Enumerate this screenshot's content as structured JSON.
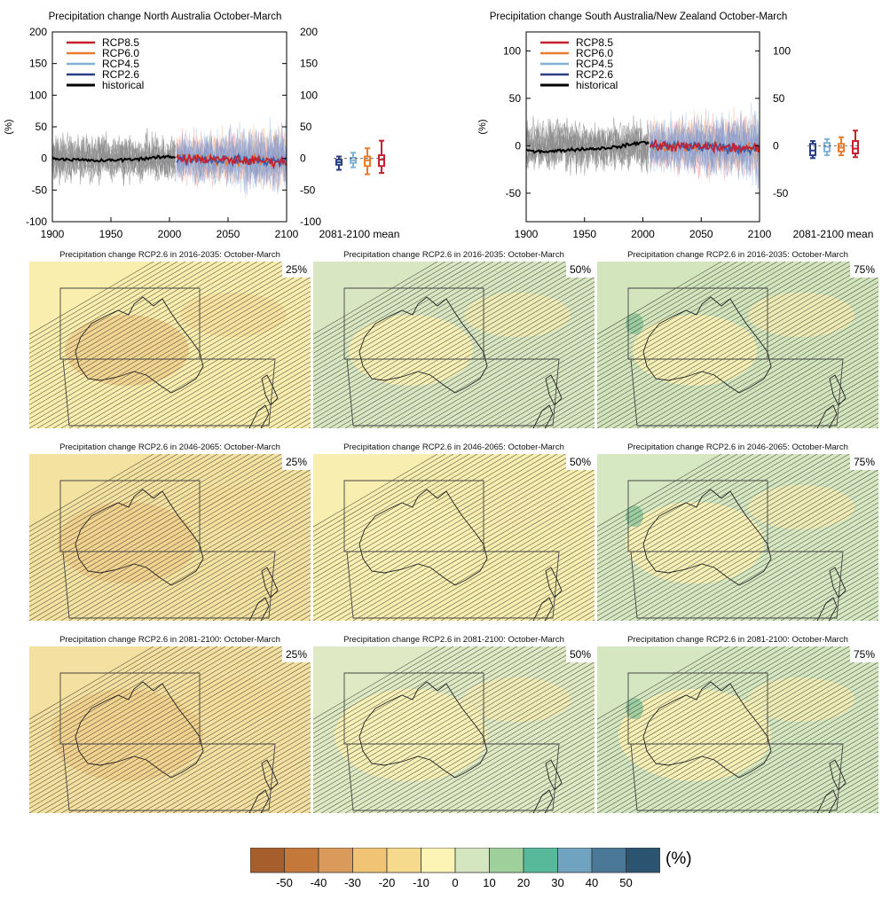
{
  "chart_data": [
    {
      "type": "line",
      "title": "Precipitation change North Australia October-March",
      "ylabel": "(%)",
      "xlim": [
        1900,
        2100
      ],
      "ylim": [
        -100,
        200
      ],
      "x_ticks": [
        "1900",
        "1950",
        "2000",
        "2050",
        "2100"
      ],
      "y_ticks": [
        "200",
        "150",
        "100",
        "50",
        "0",
        "-50",
        "-100"
      ],
      "legend": "top-left",
      "boxplot_label": "2081-2100 mean",
      "series": [
        {
          "name": "RCP8.5",
          "color": "#c8202c",
          "box": {
            "min": -23,
            "q1": -12,
            "median": -2,
            "q3": 5,
            "max": 28
          }
        },
        {
          "name": "RCP6.0",
          "color": "#e97b2a",
          "box": {
            "min": -25,
            "q1": -12,
            "median": -3,
            "q3": 3,
            "max": 16
          }
        },
        {
          "name": "RCP4.5",
          "color": "#7fb2d6",
          "box": {
            "min": -14,
            "q1": -7,
            "median": -3,
            "q3": 1,
            "max": 9
          }
        },
        {
          "name": "RCP2.6",
          "color": "#283e85",
          "box": {
            "min": -18,
            "q1": -10,
            "median": -6,
            "q3": -2,
            "max": 3
          }
        },
        {
          "name": "historical",
          "color": "#000000"
        }
      ],
      "historical_mean": {
        "x": [
          1900,
          1920,
          1940,
          1960,
          1980,
          2000,
          2005
        ],
        "y": [
          0,
          -2,
          -4,
          -2,
          0,
          3,
          1
        ]
      },
      "future_mean": {
        "x": [
          2006,
          2030,
          2050,
          2070,
          2100
        ],
        "y": [
          0,
          -2,
          -4,
          -3,
          -5
        ]
      }
    },
    {
      "type": "line",
      "title": "Precipitation change South Australia/New Zealand October-March",
      "ylabel": "(%)",
      "xlim": [
        1900,
        2100
      ],
      "ylim": [
        -80,
        120
      ],
      "x_ticks": [
        "1900",
        "1950",
        "2000",
        "2050",
        "2100"
      ],
      "y_ticks": [
        "100",
        "50",
        "0",
        "-50"
      ],
      "legend": "top-left",
      "boxplot_label": "2081-2100 mean",
      "series": [
        {
          "name": "RCP8.5",
          "color": "#c8202c",
          "box": {
            "min": -12,
            "q1": -8,
            "median": -3,
            "q3": 5,
            "max": 16
          }
        },
        {
          "name": "RCP6.0",
          "color": "#e97b2a",
          "box": {
            "min": -10,
            "q1": -6,
            "median": -2,
            "q3": 2,
            "max": 9
          }
        },
        {
          "name": "RCP4.5",
          "color": "#7fb2d6",
          "box": {
            "min": -10,
            "q1": -6,
            "median": -1,
            "q3": 3,
            "max": 7
          }
        },
        {
          "name": "RCP2.6",
          "color": "#283e85",
          "box": {
            "min": -13,
            "q1": -10,
            "median": -5,
            "q3": 2,
            "max": 5
          }
        },
        {
          "name": "historical",
          "color": "#000000"
        }
      ],
      "historical_mean": {
        "x": [
          1900,
          1920,
          1940,
          1960,
          1980,
          2000,
          2005
        ],
        "y": [
          -5,
          -6,
          -4,
          -3,
          -1,
          4,
          2
        ]
      },
      "future_mean": {
        "x": [
          2006,
          2030,
          2050,
          2070,
          2100
        ],
        "y": [
          0,
          -1,
          0,
          -2,
          -3
        ]
      }
    }
  ],
  "maps": {
    "rows": [
      {
        "title": "Precipitation change RCP2.6 in 2016-2035: October-March",
        "periods": [
          "25%",
          "50%",
          "75%"
        ]
      },
      {
        "title": "Precipitation change RCP2.6 in 2046-2065: October-March",
        "periods": [
          "25%",
          "50%",
          "75%"
        ]
      },
      {
        "title": "Precipitation change RCP2.6 in 2081-2100: October-March",
        "periods": [
          "25%",
          "50%",
          "75%"
        ]
      }
    ],
    "panel_colors": [
      [
        "#f9eeae",
        "#d8e6c2",
        "#d2e5bd"
      ],
      [
        "#f4e2a1",
        "#f7eeb0",
        "#d6e8c2"
      ],
      [
        "#f4e0a0",
        "#dfe9c4",
        "#d4e7c0"
      ]
    ]
  },
  "colorbar": {
    "unit": "(%)",
    "ticks": [
      "-50",
      "-40",
      "-30",
      "-20",
      "-10",
      "0",
      "10",
      "20",
      "30",
      "40",
      "50"
    ],
    "colors": [
      "#a65f2c",
      "#c4793b",
      "#d99a5c",
      "#f0c474",
      "#f5d98c",
      "#fcf4b4",
      "#d4e6bf",
      "#9fcf9a",
      "#57b89a",
      "#6fa3bf",
      "#4b7896",
      "#2b5470"
    ]
  }
}
